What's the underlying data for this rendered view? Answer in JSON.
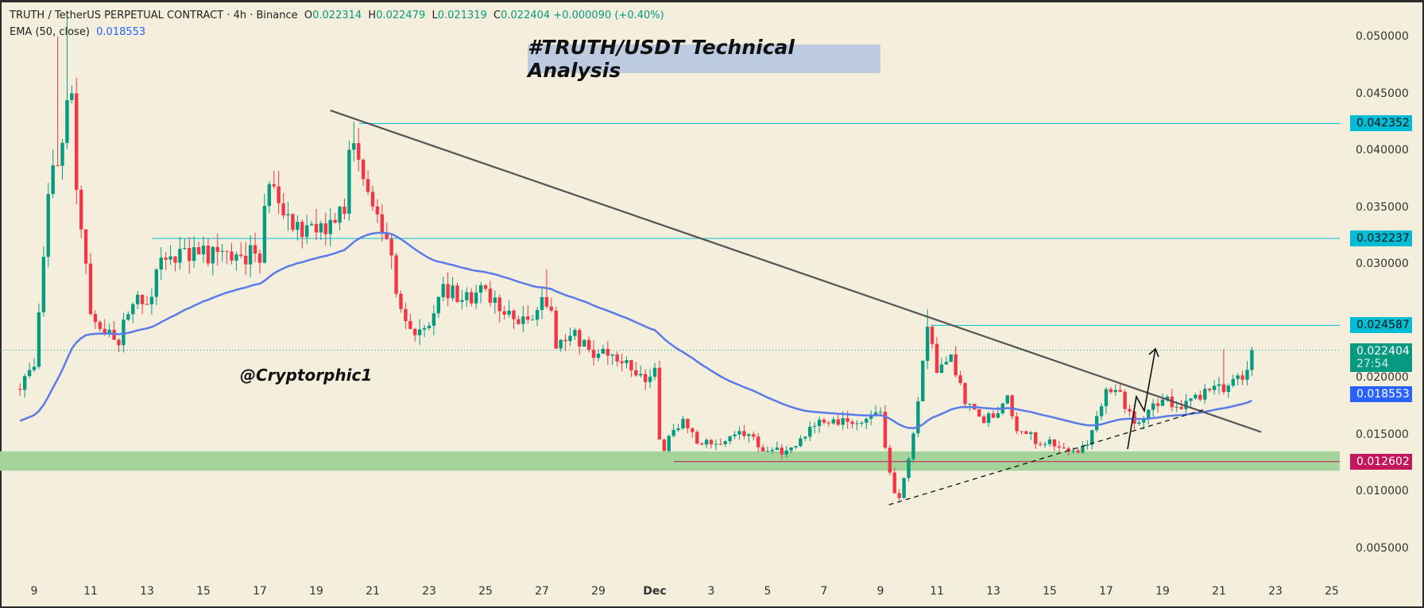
{
  "header": {
    "symbol": "TRUTH / TetherUS PERPETUAL CONTRACT · 4h · Binance",
    "open_label": "O",
    "open": "0.022314",
    "high_label": "H",
    "high": "0.022479",
    "low_label": "L",
    "low": "0.021319",
    "close_label": "C",
    "close": "0.022404",
    "change": "+0.000090 (+0.40%)",
    "ema_label": "EMA (50, close)",
    "ema_value": "0.018553"
  },
  "annotations": {
    "title": "#TRUTH/USDT Technical Analysis",
    "watermark": "@Cryptorphic1"
  },
  "price_axis": {
    "ticks": [
      "0.050000",
      "0.045000",
      "0.040000",
      "0.035000",
      "0.030000",
      "0.020000",
      "0.015000",
      "0.010000",
      "0.005000"
    ],
    "levels": [
      {
        "value": "0.042352",
        "color": "#00bcd4",
        "text_color": "#111"
      },
      {
        "value": "0.032237",
        "color": "#00bcd4",
        "text_color": "#111"
      },
      {
        "value": "0.024587",
        "color": "#00bcd4",
        "text_color": "#111"
      },
      {
        "value": "0.018553",
        "color": "#2962ff",
        "text_color": "#fff"
      },
      {
        "value": "0.012602",
        "color": "#c2185b",
        "text_color": "#fff"
      }
    ],
    "current_price": "0.022404",
    "countdown": "27:54",
    "current_color": "#089981"
  },
  "time_axis": {
    "labels": [
      {
        "text": "9",
        "day": 9
      },
      {
        "text": "11",
        "day": 11
      },
      {
        "text": "13",
        "day": 13
      },
      {
        "text": "15",
        "day": 15
      },
      {
        "text": "17",
        "day": 17
      },
      {
        "text": "19",
        "day": 19
      },
      {
        "text": "21",
        "day": 21
      },
      {
        "text": "23",
        "day": 23
      },
      {
        "text": "25",
        "day": 25
      },
      {
        "text": "27",
        "day": 27
      },
      {
        "text": "29",
        "day": 29
      },
      {
        "text": "Dec",
        "day": 31
      },
      {
        "text": "3",
        "day": 33
      },
      {
        "text": "5",
        "day": 35
      },
      {
        "text": "7",
        "day": 37
      },
      {
        "text": "9",
        "day": 39
      },
      {
        "text": "11",
        "day": 41
      },
      {
        "text": "13",
        "day": 43
      },
      {
        "text": "15",
        "day": 45
      },
      {
        "text": "17",
        "day": 47
      },
      {
        "text": "19",
        "day": 49
      },
      {
        "text": "21",
        "day": 51
      },
      {
        "text": "23",
        "day": 53
      },
      {
        "text": "25",
        "day": 55
      }
    ]
  },
  "chart_data": {
    "type": "candlestick",
    "interval": "4h",
    "x_unit": "days since Nov 0 (Dec 1 = 31)",
    "ylim": [
      0.0,
      0.053
    ],
    "up_color": "#089981",
    "down_color": "#f23645",
    "ema_color": "#5b7be8",
    "ema_period": 50,
    "close_path": [
      [
        8.5,
        0.019
      ],
      [
        9,
        0.021
      ],
      [
        9.3,
        0.03
      ],
      [
        9.6,
        0.038
      ],
      [
        10,
        0.04
      ],
      [
        10.3,
        0.046
      ],
      [
        10.5,
        0.036
      ],
      [
        11,
        0.026
      ],
      [
        11.5,
        0.024
      ],
      [
        12,
        0.0235
      ],
      [
        12.5,
        0.027
      ],
      [
        13,
        0.026
      ],
      [
        13.5,
        0.031
      ],
      [
        14,
        0.031
      ],
      [
        15,
        0.031
      ],
      [
        16,
        0.0305
      ],
      [
        17,
        0.031
      ],
      [
        17.3,
        0.038
      ],
      [
        17.7,
        0.034
      ],
      [
        18.5,
        0.033
      ],
      [
        19,
        0.0325
      ],
      [
        19.5,
        0.034
      ],
      [
        20,
        0.035
      ],
      [
        20.3,
        0.042
      ],
      [
        20.6,
        0.037
      ],
      [
        21,
        0.036
      ],
      [
        21.3,
        0.033
      ],
      [
        21.6,
        0.031
      ],
      [
        22,
        0.026
      ],
      [
        22.5,
        0.0235
      ],
      [
        23,
        0.025
      ],
      [
        23.5,
        0.028
      ],
      [
        24,
        0.027
      ],
      [
        25,
        0.0275
      ],
      [
        25.5,
        0.026
      ],
      [
        26,
        0.0255
      ],
      [
        26.5,
        0.025
      ],
      [
        27,
        0.0265
      ],
      [
        27.3,
        0.027
      ],
      [
        27.5,
        0.022
      ],
      [
        28,
        0.024
      ],
      [
        28.5,
        0.023
      ],
      [
        29,
        0.022
      ],
      [
        29.5,
        0.0225
      ],
      [
        30,
        0.021
      ],
      [
        30.5,
        0.02
      ],
      [
        31,
        0.0205
      ],
      [
        31.2,
        0.0135
      ],
      [
        31.5,
        0.0145
      ],
      [
        32,
        0.016
      ],
      [
        32.5,
        0.0145
      ],
      [
        33,
        0.014
      ],
      [
        34,
        0.0155
      ],
      [
        35,
        0.0135
      ],
      [
        35.5,
        0.0135
      ],
      [
        36,
        0.014
      ],
      [
        37,
        0.0165
      ],
      [
        38,
        0.016
      ],
      [
        38.5,
        0.0165
      ],
      [
        39,
        0.0165
      ],
      [
        39.3,
        0.012
      ],
      [
        39.6,
        0.009
      ],
      [
        40,
        0.0125
      ],
      [
        40.4,
        0.0185
      ],
      [
        40.6,
        0.0245
      ],
      [
        41,
        0.021
      ],
      [
        41.5,
        0.022
      ],
      [
        42,
        0.018
      ],
      [
        42.5,
        0.0165
      ],
      [
        43,
        0.0165
      ],
      [
        43.5,
        0.019
      ],
      [
        43.8,
        0.0155
      ],
      [
        44,
        0.0155
      ],
      [
        44.5,
        0.0145
      ],
      [
        45,
        0.0145
      ],
      [
        45.5,
        0.014
      ],
      [
        46,
        0.0135
      ],
      [
        46.5,
        0.015
      ],
      [
        47,
        0.019
      ],
      [
        47.5,
        0.0185
      ],
      [
        48,
        0.016
      ],
      [
        48.3,
        0.0165
      ],
      [
        48.7,
        0.0175
      ],
      [
        49,
        0.018
      ],
      [
        49.5,
        0.0175
      ],
      [
        50,
        0.018
      ],
      [
        50.5,
        0.0185
      ],
      [
        51,
        0.019
      ],
      [
        51.3,
        0.0195
      ],
      [
        51.6,
        0.02
      ],
      [
        52,
        0.0205
      ],
      [
        52.2,
        0.0224
      ]
    ],
    "spikes": [
      [
        9.8,
        0.05
      ],
      [
        10.2,
        0.052
      ],
      [
        20.3,
        0.0425
      ],
      [
        27.2,
        0.0295
      ],
      [
        40.7,
        0.026
      ],
      [
        51.2,
        0.0225
      ]
    ],
    "support_zone": [
      0.0118,
      0.0135
    ],
    "trendline_down": [
      [
        19.5,
        0.0435
      ],
      [
        52.5,
        0.0152
      ]
    ],
    "trendline_up_dashed": [
      [
        39.3,
        0.0088
      ],
      [
        50.5,
        0.0172
      ]
    ]
  }
}
